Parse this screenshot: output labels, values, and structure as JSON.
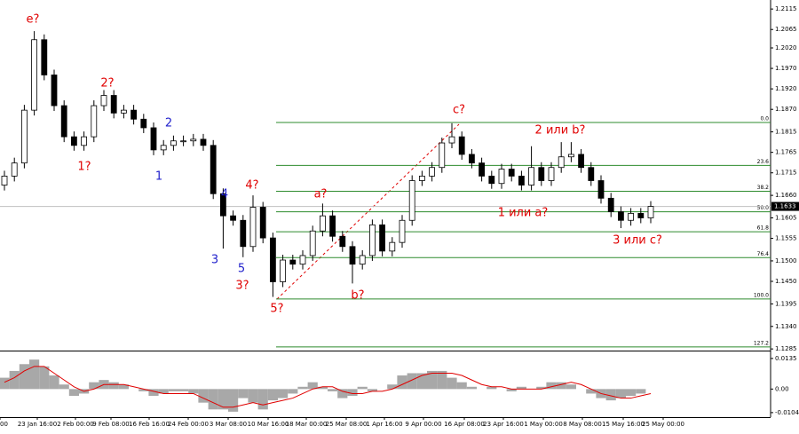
{
  "chart_data": {
    "type": "candlestick",
    "ylim": [
      1.1281,
      1.2137
    ],
    "yticks": [
      1.2115,
      {
        "value": 1.2065,
        "label": "1.2065"
      },
      {
        "value": 1.202,
        "label": "1.2020"
      },
      {
        "value": 1.197,
        "label": "1.1970"
      },
      {
        "value": 1.192,
        "label": "1.1920"
      },
      {
        "value": 1.187,
        "label": "1.1870"
      },
      1.1815,
      1.1765,
      1.1715,
      {
        "value": 1.166,
        "label": "1.1660"
      },
      1.1605,
      1.1555,
      {
        "value": 1.15,
        "label": "1.1500"
      },
      {
        "value": 1.145,
        "label": "1.1450"
      },
      1.1395,
      {
        "value": 1.134,
        "label": "1.1340"
      },
      1.1285
    ],
    "current_price": 1.1633,
    "up_color": "#ffffff",
    "down_color": "#000000",
    "candles": [
      [
        1.1685,
        1.172,
        1.1672,
        1.1707
      ],
      [
        1.1707,
        1.1752,
        1.1694,
        1.1739
      ],
      [
        1.1739,
        1.1881,
        1.1726,
        1.1868
      ],
      [
        1.1868,
        1.2061,
        1.1855,
        1.204
      ],
      [
        1.204,
        1.2053,
        1.1941,
        1.1954
      ],
      [
        1.1954,
        1.1967,
        1.1866,
        1.1879
      ],
      [
        1.1879,
        1.1892,
        1.179,
        1.1803
      ],
      [
        1.1803,
        1.1816,
        1.1769,
        1.1782
      ],
      [
        1.1782,
        1.1816,
        1.1769,
        1.1803
      ],
      [
        1.1803,
        1.1892,
        1.179,
        1.1879
      ],
      [
        1.1879,
        1.1917,
        1.1866,
        1.1904
      ],
      [
        1.1904,
        1.1917,
        1.1848,
        1.1861
      ],
      [
        1.1861,
        1.1881,
        1.1848,
        1.1868
      ],
      [
        1.1868,
        1.1881,
        1.1833,
        1.1846
      ],
      [
        1.1846,
        1.1859,
        1.1812,
        1.1825
      ],
      [
        1.1825,
        1.1838,
        1.1758,
        1.1771
      ],
      [
        1.1771,
        1.1795,
        1.1758,
        1.1782
      ],
      [
        1.1782,
        1.1806,
        1.1769,
        1.1793
      ],
      [
        1.1793,
        1.1806,
        1.178,
        1.1793
      ],
      [
        1.1793,
        1.181,
        1.178,
        1.1797
      ],
      [
        1.1797,
        1.181,
        1.1769,
        1.1782
      ],
      [
        1.1782,
        1.1795,
        1.1651,
        1.1664
      ],
      [
        1.1664,
        1.1677,
        1.153,
        1.161
      ],
      [
        1.161,
        1.1623,
        1.1586,
        1.1599
      ],
      [
        1.1599,
        1.1612,
        1.1509,
        1.1535
      ],
      [
        1.1535,
        1.166,
        1.1522,
        1.1631
      ],
      [
        1.1631,
        1.1644,
        1.1543,
        1.1556
      ],
      [
        1.1556,
        1.1569,
        1.1412,
        1.1449
      ],
      [
        1.1449,
        1.1515,
        1.1436,
        1.1502
      ],
      [
        1.1502,
        1.1515,
        1.1479,
        1.1492
      ],
      [
        1.1492,
        1.1526,
        1.1479,
        1.1513
      ],
      [
        1.1513,
        1.1586,
        1.15,
        1.1573
      ],
      [
        1.1573,
        1.164,
        1.156,
        1.161
      ],
      [
        1.161,
        1.1623,
        1.1547,
        1.156
      ],
      [
        1.156,
        1.1573,
        1.1522,
        1.1535
      ],
      [
        1.1535,
        1.1548,
        1.1445,
        1.1492
      ],
      [
        1.1492,
        1.1526,
        1.1479,
        1.1513
      ],
      [
        1.1513,
        1.1601,
        1.15,
        1.1588
      ],
      [
        1.1588,
        1.1601,
        1.1511,
        1.1524
      ],
      [
        1.1524,
        1.1558,
        1.1511,
        1.1545
      ],
      [
        1.1545,
        1.1612,
        1.1532,
        1.1599
      ],
      [
        1.1599,
        1.1709,
        1.1586,
        1.1696
      ],
      [
        1.1696,
        1.172,
        1.1683,
        1.1707
      ],
      [
        1.1707,
        1.1741,
        1.1694,
        1.1728
      ],
      [
        1.1728,
        1.1801,
        1.1715,
        1.1788
      ],
      [
        1.1788,
        1.1836,
        1.1775,
        1.1803
      ],
      [
        1.1803,
        1.1816,
        1.1747,
        1.176
      ],
      [
        1.176,
        1.1773,
        1.1726,
        1.1739
      ],
      [
        1.1739,
        1.1752,
        1.1694,
        1.1707
      ],
      [
        1.1707,
        1.172,
        1.1676,
        1.1689
      ],
      [
        1.1689,
        1.1737,
        1.1676,
        1.1724
      ],
      [
        1.1724,
        1.1737,
        1.1694,
        1.1707
      ],
      [
        1.1707,
        1.172,
        1.1672,
        1.1685
      ],
      [
        1.1685,
        1.178,
        1.1672,
        1.1728
      ],
      [
        1.1728,
        1.1741,
        1.1683,
        1.1696
      ],
      [
        1.1696,
        1.1741,
        1.1683,
        1.1728
      ],
      [
        1.1728,
        1.179,
        1.1715,
        1.1754
      ],
      [
        1.1754,
        1.179,
        1.1741,
        1.176
      ],
      [
        1.176,
        1.1773,
        1.1715,
        1.1728
      ],
      [
        1.1728,
        1.1741,
        1.1683,
        1.1696
      ],
      [
        1.1696,
        1.1709,
        1.164,
        1.1653
      ],
      [
        1.1653,
        1.1666,
        1.1607,
        1.162
      ],
      [
        1.162,
        1.1633,
        1.158,
        1.1599
      ],
      [
        1.1599,
        1.1629,
        1.1586,
        1.1616
      ],
      [
        1.1616,
        1.1629,
        1.1592,
        1.1605
      ],
      [
        1.1605,
        1.1646,
        1.1592,
        1.1633
      ]
    ],
    "fib_color": "#2e8b2e",
    "fib_levels": [
      {
        "label": "0.0",
        "value": 1.1838
      },
      {
        "label": "23.6",
        "value": 1.1733
      },
      {
        "label": "38.2",
        "value": 1.167
      },
      {
        "label": "50.0",
        "value": 1.162
      },
      {
        "label": "61.8",
        "value": 1.1571
      },
      {
        "label": "76.4",
        "value": 1.1508
      },
      {
        "label": "100.0",
        "value": 1.1407
      },
      {
        "label": "127.2",
        "value": 1.129
      }
    ],
    "annotations": [
      {
        "text": "e?",
        "color": "#e00000"
      },
      {
        "text": "2?",
        "color": "#e00000"
      },
      {
        "text": "1?",
        "color": "#e00000"
      },
      {
        "text": "2",
        "color": "#2222cc"
      },
      {
        "text": "1",
        "color": "#2222cc"
      },
      {
        "text": "3",
        "color": "#2222cc"
      },
      {
        "text": "4",
        "color": "#2222cc"
      },
      {
        "text": "5",
        "color": "#2222cc"
      },
      {
        "text": "4?",
        "color": "#e00000"
      },
      {
        "text": "3?",
        "color": "#e00000"
      },
      {
        "text": "5?",
        "color": "#e00000"
      },
      {
        "text": "a?",
        "color": "#e00000"
      },
      {
        "text": "b?",
        "color": "#e00000"
      },
      {
        "text": "c?",
        "color": "#e00000"
      },
      {
        "text": "2 или b?",
        "color": "#e00000"
      },
      {
        "text": "1 или a?",
        "color": "#e00000"
      },
      {
        "text": "3 или с?",
        "color": "#e00000"
      }
    ],
    "x_labels": [
      "00",
      "23 Jan 16:00",
      "2 Feb 00:00",
      "9 Feb 08:00",
      "16 Feb 16:00",
      "24 Feb 00:00",
      "3 Mar 08:00",
      "10 Mar 16:00",
      "18 Mar 00:00",
      "25 Mar 08:00",
      "1 Apr 16:00",
      "9 Apr 00:00",
      "16 Apr 08:00",
      "23 Apr 16:00",
      "1 May 00:00",
      "8 May 08:00",
      "15 May 16:00",
      "25 May 00:00"
    ],
    "oscillator": {
      "ylim": [
        -0.0124,
        0.0162
      ],
      "yticks": [
        0.0135,
        {
          "value": 0,
          "label": "0.00"
        },
        -0.0104
      ],
      "histogram_color": "#a8a8a8",
      "signal_color": "#e00000",
      "histogram": [
        0.005,
        0.008,
        0.011,
        0.013,
        0.01,
        0.006,
        0.002,
        -0.003,
        -0.002,
        0.003,
        0.004,
        0.003,
        0.002,
        0.0,
        -0.001,
        -0.003,
        -0.002,
        -0.001,
        -0.001,
        -0.002,
        -0.006,
        -0.009,
        -0.009,
        -0.01,
        -0.004,
        -0.006,
        -0.009,
        -0.005,
        -0.004,
        -0.002,
        0.001,
        0.003,
        0.001,
        -0.001,
        -0.004,
        -0.003,
        0.001,
        -0.001,
        0.0,
        0.002,
        0.006,
        0.007,
        0.007,
        0.008,
        0.008,
        0.005,
        0.003,
        0.001,
        0.0,
        0.001,
        0.0,
        -0.001,
        0.001,
        0.0,
        0.001,
        0.003,
        0.003,
        0.002,
        0.0,
        -0.002,
        -0.004,
        -0.005,
        -0.004,
        -0.003,
        -0.002,
        0.0
      ],
      "signal": [
        0.003,
        0.005,
        0.008,
        0.01,
        0.01,
        0.007,
        0.004,
        0.001,
        -0.001,
        0.0,
        0.002,
        0.002,
        0.002,
        0.001,
        0.0,
        -0.001,
        -0.002,
        -0.002,
        -0.002,
        -0.002,
        -0.004,
        -0.006,
        -0.008,
        -0.008,
        -0.007,
        -0.006,
        -0.007,
        -0.006,
        -0.005,
        -0.004,
        -0.002,
        0.0,
        0.001,
        0.001,
        -0.001,
        -0.002,
        -0.002,
        -0.001,
        -0.001,
        0.0,
        0.002,
        0.004,
        0.006,
        0.007,
        0.007,
        0.007,
        0.006,
        0.004,
        0.002,
        0.001,
        0.001,
        0.0,
        0.0,
        0.0,
        0.0,
        0.001,
        0.002,
        0.003,
        0.002,
        0.0,
        -0.002,
        -0.003,
        -0.004,
        -0.004,
        -0.003,
        -0.002
      ]
    }
  }
}
